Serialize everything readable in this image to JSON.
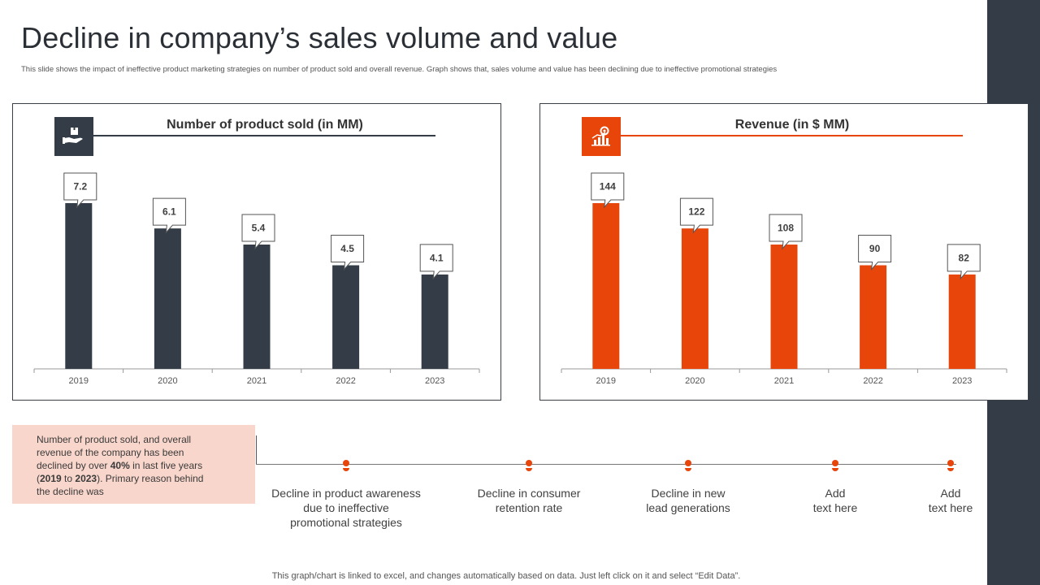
{
  "title": "Decline in company’s sales volume and value",
  "subtitle": "This slide shows the impact of ineffective product marketing strategies on number of product sold and overall revenue. Graph shows that, sales volume and value has been declining due to ineffective promotional strategies",
  "colors": {
    "dark": "#333c47",
    "accent": "#e8450b",
    "box": "#f9d6cb"
  },
  "chart_data": [
    {
      "type": "bar",
      "title": "Number of product sold (in MM)",
      "icon": "hand-holding-box-icon",
      "color": "#333c47",
      "categories": [
        "2019",
        "2020",
        "2021",
        "2022",
        "2023"
      ],
      "values": [
        7.2,
        6.1,
        5.4,
        4.5,
        4.1
      ],
      "labels": [
        "7.2",
        "6.1",
        "5.4",
        "4.5",
        "4.1"
      ],
      "ylim": [
        0,
        7.2
      ],
      "xlabel": "",
      "ylabel": ""
    },
    {
      "type": "bar",
      "title": "Revenue (in $ MM)",
      "icon": "growth-chart-gear-icon",
      "color": "#e8450b",
      "categories": [
        "2019",
        "2020",
        "2021",
        "2022",
        "2023"
      ],
      "values": [
        144,
        122,
        108,
        90,
        82
      ],
      "labels": [
        "144",
        "122",
        "108",
        "90",
        "82"
      ],
      "ylim": [
        0,
        144
      ],
      "xlabel": "",
      "ylabel": ""
    }
  ],
  "info": {
    "line1": "Number of product sold, and overall",
    "line2": "revenue  of the company has been",
    "line3a": "declined by over ",
    "pct": "40%",
    "line3b": " in last five  years",
    "open": "(",
    "y1": "2019",
    "to": " to ",
    "y2": "2023",
    "line4b": ").  Primary reason behind",
    "line5": "the decline was"
  },
  "timeline": [
    {
      "l1": "Decline in product awareness",
      "l2": "due to ineffective",
      "l3": "promotional strategies"
    },
    {
      "l1": "Decline in consumer",
      "l2": "retention rate",
      "l3": ""
    },
    {
      "l1": "Decline in new",
      "l2": "lead generations",
      "l3": ""
    },
    {
      "l1": "Add",
      "l2": "text here",
      "l3": ""
    },
    {
      "l1": "Add",
      "l2": "text here",
      "l3": ""
    }
  ],
  "footer": "This graph/chart is linked to excel,  and changes automatically based on data. Just left click on it and select “Edit Data”."
}
